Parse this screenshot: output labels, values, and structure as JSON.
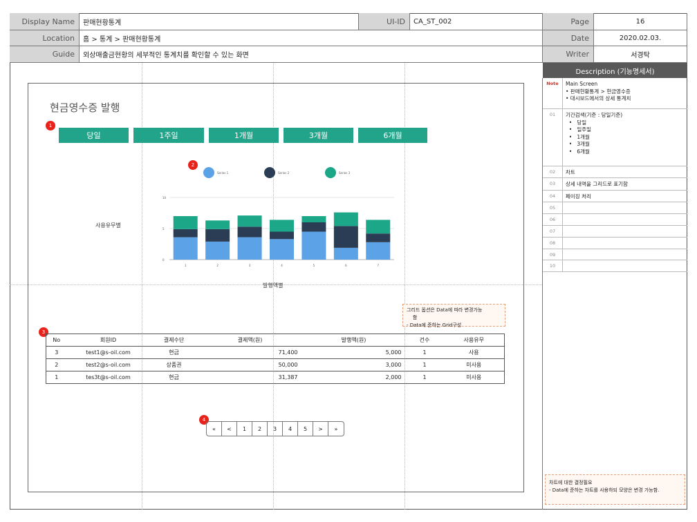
{
  "header": {
    "display_name_label": "Display Name",
    "display_name": "판매현황통계",
    "uiid_label": "UI-ID",
    "uiid": "CA_ST_002",
    "page_label": "Page",
    "page": "16",
    "location_label": "Location",
    "location": "홈 > 통계 > 판매현황통계",
    "date_label": "Date",
    "date": "2020.02.03.",
    "guide_label": "Guide",
    "guide": "외상매출금현황의 세부적인 통계치를 확인할 수 있는 화면",
    "writer_label": "Writer",
    "writer": "서경탁"
  },
  "description": {
    "title": "Description (기능명세서)",
    "note_label": "Note",
    "note_text": "Main Screen\n• 판매현황통계 > 현금영수증\n• 대시보드에서의 상세 통계치",
    "rows": [
      {
        "num": "01",
        "text": "기간검색(기준 : 당일기준)\n  •   당일\n  •   일주일\n  •   1개월\n  •   3개월\n  •   6개월"
      },
      {
        "num": "02",
        "text": "차트"
      },
      {
        "num": "03",
        "text": "상세 내역을 그리드로 표기함"
      },
      {
        "num": "04",
        "text": "페이징 처리"
      },
      {
        "num": "05",
        "text": ""
      },
      {
        "num": "06",
        "text": ""
      },
      {
        "num": "07",
        "text": ""
      },
      {
        "num": "08",
        "text": ""
      },
      {
        "num": "09",
        "text": ""
      },
      {
        "num": "10",
        "text": ""
      }
    ],
    "bottom_note": "차트에 대한 결정필요\n- Data에 준하는 차트를 사용하되 모양은 변경 가능함."
  },
  "screen": {
    "title": "현금영수증 발행",
    "badges": [
      "1",
      "2",
      "3",
      "4"
    ],
    "tabs": [
      "당일",
      "1주일",
      "1개월",
      "3개월",
      "6개월"
    ],
    "legend": [
      "Series 1",
      "Series 2",
      "Series 3"
    ],
    "y_axis_label": "사용유무별",
    "x_axis_label": "발행액별",
    "grid_note": "그리드 옵션은 Data에 따라 변경가능\n    함\n- Data에 준하는 Grid구성",
    "table": {
      "headers": [
        "No",
        "회원ID",
        "결제수단",
        "결제액(원)",
        "발행액(원)",
        "건수",
        "사용유무"
      ],
      "rows": [
        [
          "3",
          "test1@s-oil.com",
          "현금",
          "71,400",
          "5,000",
          "1",
          "사용"
        ],
        [
          "2",
          "test2@s-oil.com",
          "상품권",
          "50,000",
          "3,000",
          "1",
          "미사용"
        ],
        [
          "1",
          "tes3t@s-oil.com",
          "현금",
          "31,387",
          "2,000",
          "1",
          "미사용"
        ]
      ]
    },
    "pagination": [
      "«",
      "<",
      "1",
      "2",
      "3",
      "4",
      "5",
      ">",
      "»"
    ]
  },
  "chart_data": {
    "type": "bar",
    "stacked": true,
    "categories": [
      "1",
      "2",
      "3",
      "4",
      "5",
      "6",
      "7"
    ],
    "series": [
      {
        "name": "Series 1",
        "color": "#5ba3e6",
        "values": [
          3.6,
          2.9,
          3.6,
          3.3,
          4.5,
          1.9,
          2.8
        ]
      },
      {
        "name": "Series 2",
        "color": "#2b3d54",
        "values": [
          1.3,
          2.0,
          1.7,
          1.2,
          1.5,
          3.5,
          1.4
        ]
      },
      {
        "name": "Series 3",
        "color": "#1ca789",
        "values": [
          2.1,
          1.4,
          1.8,
          1.9,
          1.0,
          2.2,
          2.2
        ]
      }
    ],
    "ylim": [
      0,
      10
    ],
    "yticks": [
      "0",
      "5",
      "10"
    ],
    "grid": true
  }
}
